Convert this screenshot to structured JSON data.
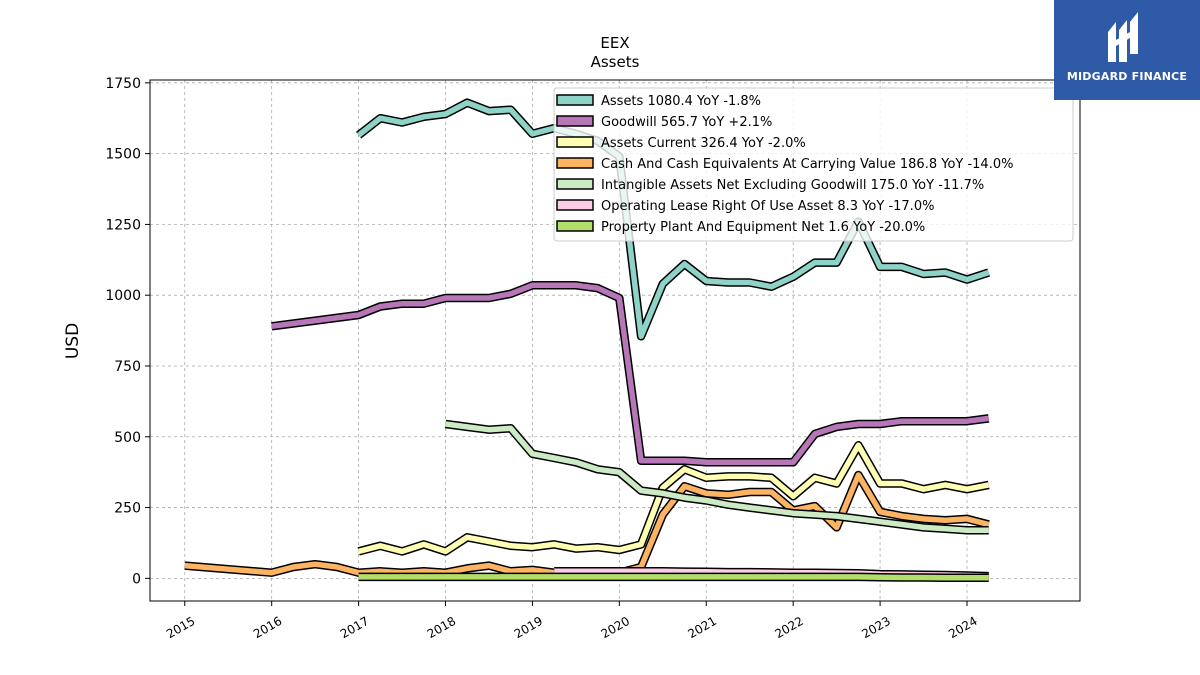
{
  "brand": {
    "name": "MIDGARD FINANCE"
  },
  "chart_data": {
    "type": "line",
    "title": "EEX",
    "subtitle": "Assets",
    "ylabel": "USD",
    "xlabel": "",
    "xlim": [
      2014.6,
      2025.3
    ],
    "ylim": [
      -80,
      1760
    ],
    "yticks": [
      0,
      250,
      500,
      750,
      1000,
      1250,
      1500,
      1750
    ],
    "xticks": [
      2015,
      2016,
      2017,
      2018,
      2019,
      2020,
      2021,
      2022,
      2023,
      2024
    ],
    "xtick_labels": [
      "2015",
      "2016",
      "2017",
      "2018",
      "2019",
      "2020",
      "2021",
      "2022",
      "2023",
      "2024"
    ],
    "grid": true,
    "legend_position": "top-right",
    "series": [
      {
        "name": "Assets",
        "legend": "Assets  1080.4 YoY -1.8%",
        "color": "#8dd3c7",
        "x": [
          2017.0,
          2017.25,
          2017.5,
          2017.75,
          2018.0,
          2018.25,
          2018.5,
          2018.75,
          2019.0,
          2019.25,
          2019.5,
          2019.75,
          2020.0,
          2020.25,
          2020.5,
          2020.75,
          2021.0,
          2021.25,
          2021.5,
          2021.75,
          2022.0,
          2022.25,
          2022.5,
          2022.75,
          2023.0,
          2023.25,
          2023.5,
          2023.75,
          2024.0,
          2024.25
        ],
        "y": [
          1565,
          1625,
          1610,
          1630,
          1640,
          1680,
          1650,
          1655,
          1570,
          1590,
          1570,
          1545,
          1490,
          855,
          1040,
          1110,
          1050,
          1045,
          1045,
          1030,
          1065,
          1115,
          1115,
          1260,
          1100,
          1100,
          1075,
          1080,
          1055,
          1080
        ]
      },
      {
        "name": "Goodwill",
        "legend": "Goodwill  565.7 YoY +2.1%",
        "color": "#b776b8",
        "x": [
          2016.0,
          2017.0,
          2017.25,
          2017.5,
          2017.75,
          2018.0,
          2018.25,
          2018.5,
          2018.75,
          2019.0,
          2019.25,
          2019.5,
          2019.75,
          2020.0,
          2020.25,
          2020.5,
          2020.75,
          2021.0,
          2021.25,
          2021.5,
          2021.75,
          2022.0,
          2022.25,
          2022.5,
          2022.75,
          2023.0,
          2023.25,
          2023.5,
          2023.75,
          2024.0,
          2024.25
        ],
        "y": [
          890,
          930,
          960,
          970,
          970,
          990,
          990,
          990,
          1005,
          1035,
          1035,
          1035,
          1025,
          990,
          415,
          415,
          415,
          410,
          410,
          410,
          410,
          410,
          510,
          535,
          545,
          545,
          555,
          555,
          555,
          555,
          565
        ]
      },
      {
        "name": "Assets Current",
        "legend": "Assets Current  326.4 YoY -2.0%",
        "color": "#ffffb3",
        "x": [
          2017.0,
          2017.25,
          2017.5,
          2017.75,
          2018.0,
          2018.25,
          2018.5,
          2018.75,
          2019.0,
          2019.25,
          2019.5,
          2019.75,
          2020.0,
          2020.25,
          2020.5,
          2020.75,
          2021.0,
          2021.25,
          2021.5,
          2021.75,
          2022.0,
          2022.25,
          2022.5,
          2022.75,
          2023.0,
          2023.25,
          2023.5,
          2023.75,
          2024.0,
          2024.25
        ],
        "y": [
          95,
          115,
          95,
          120,
          95,
          145,
          130,
          115,
          110,
          120,
          105,
          110,
          100,
          120,
          320,
          385,
          355,
          360,
          360,
          355,
          290,
          355,
          335,
          470,
          335,
          335,
          315,
          330,
          315,
          330
        ]
      },
      {
        "name": "Cash And Cash Equivalents At Carrying Value",
        "legend": "Cash And Cash Equivalents At Carrying Value  186.8 YoY -14.0%",
        "color": "#fdb462",
        "x": [
          2015.0,
          2016.0,
          2016.25,
          2016.5,
          2016.75,
          2017.0,
          2017.25,
          2017.5,
          2017.75,
          2018.0,
          2018.25,
          2018.5,
          2018.75,
          2019.0,
          2019.25,
          2019.5,
          2019.75,
          2020.0,
          2020.25,
          2020.5,
          2020.75,
          2021.0,
          2021.25,
          2021.5,
          2021.75,
          2022.0,
          2022.25,
          2022.5,
          2022.75,
          2023.0,
          2023.25,
          2023.5,
          2023.75,
          2024.0,
          2024.25
        ],
        "y": [
          45,
          20,
          40,
          50,
          40,
          20,
          25,
          20,
          25,
          20,
          35,
          45,
          25,
          30,
          20,
          20,
          25,
          20,
          40,
          225,
          325,
          300,
          295,
          305,
          305,
          240,
          255,
          180,
          365,
          235,
          220,
          210,
          205,
          210,
          190
        ]
      },
      {
        "name": "Intangible Assets Net Excluding Goodwill",
        "legend": "Intangible Assets Net Excluding Goodwill  175.0 YoY -11.7%",
        "color": "#ccebc5",
        "x": [
          2018.0,
          2018.25,
          2018.5,
          2018.75,
          2019.0,
          2019.25,
          2019.5,
          2019.75,
          2020.0,
          2020.25,
          2020.5,
          2020.75,
          2021.0,
          2021.25,
          2021.5,
          2021.75,
          2022.0,
          2022.25,
          2022.5,
          2022.75,
          2023.0,
          2023.25,
          2023.5,
          2023.75,
          2024.0,
          2024.25
        ],
        "y": [
          545,
          535,
          525,
          530,
          440,
          425,
          410,
          385,
          375,
          310,
          300,
          285,
          275,
          260,
          250,
          240,
          230,
          225,
          220,
          210,
          200,
          190,
          180,
          175,
          170,
          170
        ]
      },
      {
        "name": "Operating Lease Right Of Use Asset",
        "legend": "Operating Lease Right Of Use Asset  8.3 YoY -17.0%",
        "color": "#fccde5",
        "x": [
          2019.25,
          2019.5,
          2019.75,
          2020.0,
          2020.25,
          2020.5,
          2020.75,
          2021.0,
          2021.25,
          2021.5,
          2021.75,
          2022.0,
          2022.25,
          2022.5,
          2022.75,
          2023.0,
          2023.25,
          2023.5,
          2023.75,
          2024.0,
          2024.25
        ],
        "y": [
          25,
          25,
          25,
          25,
          25,
          25,
          24,
          23,
          22,
          22,
          21,
          20,
          20,
          19,
          18,
          15,
          14,
          13,
          12,
          10,
          8
        ]
      },
      {
        "name": "Property Plant And Equipment Net",
        "legend": "Property Plant And Equipment Net  1.6 YoY -20.0%",
        "color": "#b3de69",
        "x": [
          2017.0,
          2017.25,
          2017.5,
          2017.75,
          2018.0,
          2018.25,
          2018.5,
          2018.75,
          2019.0,
          2019.25,
          2019.5,
          2019.75,
          2020.0,
          2020.25,
          2020.5,
          2020.75,
          2021.0,
          2021.25,
          2021.5,
          2021.75,
          2022.0,
          2022.25,
          2022.5,
          2022.75,
          2023.0,
          2023.25,
          2023.5,
          2023.75,
          2024.0,
          2024.25
        ],
        "y": [
          5,
          5,
          5,
          5,
          5,
          5,
          5,
          5,
          5,
          5,
          5,
          5,
          5,
          5,
          5,
          5,
          5,
          5,
          5,
          5,
          5,
          5,
          5,
          5,
          4,
          3,
          3,
          2,
          2,
          2
        ]
      }
    ]
  }
}
